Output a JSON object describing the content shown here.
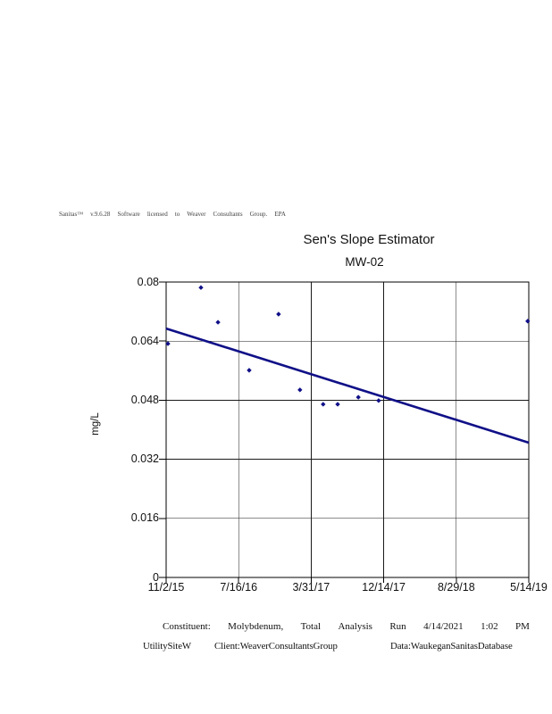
{
  "license_line": {
    "words": [
      "Sanitas™",
      "v.9.6.28",
      "Software",
      "licensed",
      "to",
      "Weaver",
      "Consultants",
      "Group.",
      "EPA"
    ]
  },
  "chart_data": {
    "type": "scatter",
    "title": "Sen's Slope Estimator",
    "subtitle": "MW-02",
    "xlabel": "",
    "ylabel": "mg/L",
    "ylim": [
      0,
      0.08
    ],
    "yticks": [
      {
        "value": 0.08,
        "label": "0.08"
      },
      {
        "value": 0.064,
        "label": "0.064"
      },
      {
        "value": 0.048,
        "label": "0.048"
      },
      {
        "value": 0.032,
        "label": "0.032"
      },
      {
        "value": 0.016,
        "label": "0.016"
      },
      {
        "value": 0,
        "label": "0"
      }
    ],
    "xticks": [
      "11/2/15",
      "7/16/16",
      "3/31/17",
      "12/14/17",
      "8/29/18",
      "5/14/19"
    ],
    "grid": true,
    "legend": "none",
    "colors": {
      "series": "#101088",
      "grid": "#1a1a1a",
      "axis": "#000000"
    },
    "points_unit": "x_frac = fraction of x-axis span 11/2/15 to 5/14/19; y in mg/L",
    "points": [
      {
        "x_frac": 0.005,
        "y_mgL": 0.0633
      },
      {
        "x_frac": 0.096,
        "y_mgL": 0.0785
      },
      {
        "x_frac": 0.143,
        "y_mgL": 0.0691
      },
      {
        "x_frac": 0.229,
        "y_mgL": 0.0561
      },
      {
        "x_frac": 0.31,
        "y_mgL": 0.0713
      },
      {
        "x_frac": 0.369,
        "y_mgL": 0.0508
      },
      {
        "x_frac": 0.433,
        "y_mgL": 0.0469
      },
      {
        "x_frac": 0.473,
        "y_mgL": 0.0469
      },
      {
        "x_frac": 0.53,
        "y_mgL": 0.0488
      },
      {
        "x_frac": 0.586,
        "y_mgL": 0.0479
      },
      {
        "x_frac": 0.997,
        "y_mgL": 0.0694
      }
    ],
    "trend_line": {
      "name": "Sen's slope line",
      "x_frac": [
        0,
        1
      ],
      "y_mgL": [
        0.0674,
        0.0365
      ]
    }
  },
  "footer": {
    "line1": [
      "Constituent:",
      "Molybdenum,",
      "Total",
      "Analysis",
      "Run",
      "4/14/2021",
      "1:02",
      "PM"
    ],
    "line2": {
      "site": "UtilitySiteW",
      "client": "Client:WeaverConsultantsGroup",
      "data": "Data:WaukeganSanitasDatabase"
    }
  }
}
